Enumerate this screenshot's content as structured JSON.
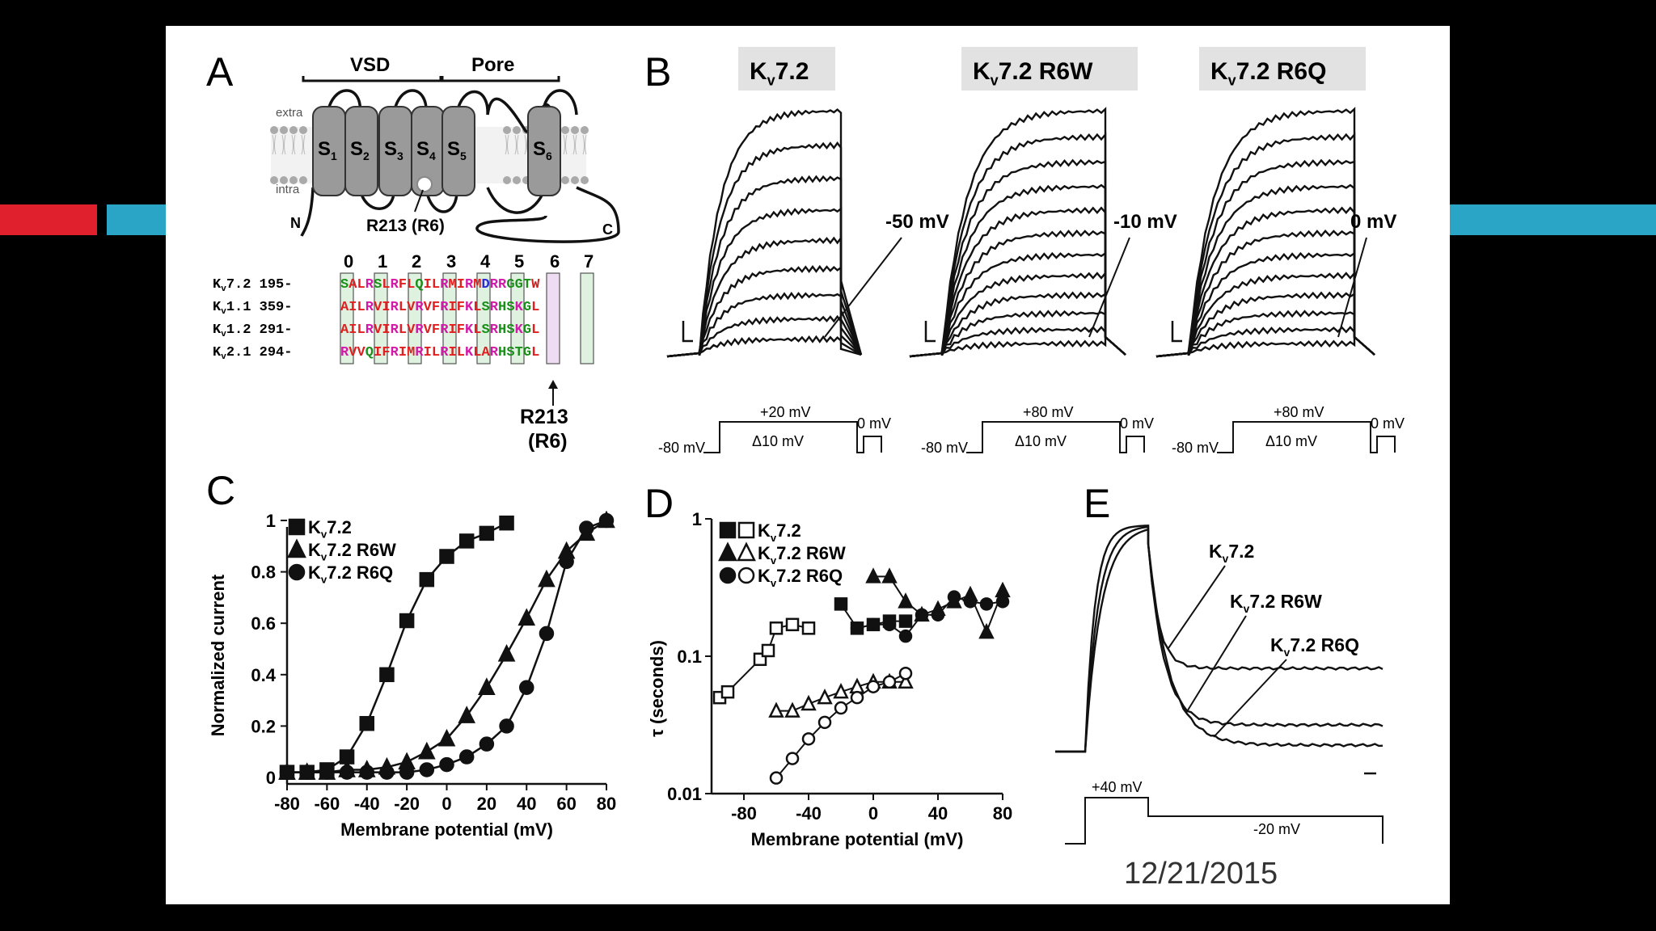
{
  "colors": {
    "red": "#e0202c",
    "cyan": "#2aa5c6",
    "slide_bg": "#ffffff",
    "ink": "#111111"
  },
  "slide": {
    "date": "12/21/2015"
  },
  "panelA": {
    "letter": "A",
    "vsd": "VSD",
    "pore": "Pore",
    "extra": "extra",
    "intra": "intra",
    "segments": [
      "S",
      "S",
      "S",
      "S",
      "S",
      "S"
    ],
    "segment_subs": [
      "1",
      "2",
      "3",
      "4",
      "5",
      "6"
    ],
    "n_term": "N",
    "c_term": "C",
    "mutation": "R213 (R6)",
    "positions": [
      "0",
      "1",
      "2",
      "3",
      "4",
      "5",
      "6",
      "7"
    ],
    "sequences": [
      {
        "name": "K",
        "sub": "v",
        "rest": "7.2",
        "start": "195-",
        "residues": "SALRSLRFLQILRMIRMDRRGGTW"
      },
      {
        "name": "K",
        "sub": "v",
        "rest": "1.1",
        "start": "359-",
        "residues": "AILRVIRLVRVFRIFKLSRHSKGL"
      },
      {
        "name": "K",
        "sub": "v",
        "rest": "1.2",
        "start": "291-",
        "residues": "AILRVIRLVRVFRIFKLSRHSKGL"
      },
      {
        "name": "K",
        "sub": "v",
        "rest": "2.1",
        "start": "294-",
        "residues": "RVVQIFRIMRILRILKLARHSTGL"
      }
    ],
    "arrow_label_1": "R213",
    "arrow_label_2": "(R6)"
  },
  "panelB": {
    "letter": "B",
    "traces": [
      {
        "title_k": "K",
        "title_sub": "v",
        "title_rest": "7.2",
        "tail": "-50 mV",
        "hold": "-80 mV",
        "step": "+20 mV",
        "delta": "Δ10 mV",
        "post": "0 mV"
      },
      {
        "title_k": "K",
        "title_sub": "v",
        "title_rest": "7.2 R6W",
        "tail": "-10 mV",
        "hold": "-80 mV",
        "step": "+80 mV",
        "delta": "Δ10 mV",
        "post": "0 mV"
      },
      {
        "title_k": "K",
        "title_sub": "v",
        "title_rest": "7.2 R6Q",
        "tail": "0 mV",
        "hold": "-80 mV",
        "step": "+80 mV",
        "delta": "Δ10 mV",
        "post": "0 mV"
      }
    ]
  },
  "panelC": {
    "letter": "C",
    "chart_data": {
      "type": "scatter",
      "xlabel": "Membrane potential (mV)",
      "ylabel": "Normalized current",
      "xlim": [
        -80,
        80
      ],
      "ylim": [
        0,
        1
      ],
      "xticks": [
        "-80",
        "-60",
        "-40",
        "-20",
        "0",
        "20",
        "40",
        "60",
        "80"
      ],
      "yticks": [
        "0",
        "0.2",
        "0.4",
        "0.6",
        "0.8",
        "1"
      ],
      "legend": [
        "K",
        "K",
        "K"
      ],
      "legend_sub": [
        "v",
        "v",
        "v"
      ],
      "legend_rest": [
        "7.2",
        "7.2 R6W",
        "7.2 R6Q"
      ],
      "series": [
        {
          "name": "Kv7.2",
          "marker": "square",
          "x": [
            -80,
            -70,
            -60,
            -50,
            -40,
            -30,
            -20,
            -10,
            0,
            10,
            20,
            30
          ],
          "y": [
            0.02,
            0.02,
            0.03,
            0.08,
            0.21,
            0.4,
            0.61,
            0.77,
            0.86,
            0.92,
            0.95,
            0.99
          ]
        },
        {
          "name": "Kv7.2 R6W",
          "marker": "triangle",
          "x": [
            -80,
            -70,
            -60,
            -50,
            -40,
            -30,
            -20,
            -10,
            0,
            10,
            20,
            30,
            40,
            50,
            60,
            70,
            80
          ],
          "y": [
            0.02,
            0.02,
            0.02,
            0.03,
            0.03,
            0.04,
            0.06,
            0.1,
            0.15,
            0.24,
            0.35,
            0.48,
            0.62,
            0.77,
            0.88,
            0.95,
            1.0
          ]
        },
        {
          "name": "Kv7.2 R6Q",
          "marker": "circle",
          "x": [
            -80,
            -70,
            -60,
            -50,
            -40,
            -30,
            -20,
            -10,
            0,
            10,
            20,
            30,
            40,
            50,
            60,
            70,
            80
          ],
          "y": [
            0.02,
            0.02,
            0.02,
            0.02,
            0.02,
            0.02,
            0.02,
            0.03,
            0.05,
            0.08,
            0.13,
            0.2,
            0.35,
            0.56,
            0.84,
            0.97,
            1.0
          ]
        }
      ]
    }
  },
  "panelD": {
    "letter": "D",
    "chart_data": {
      "type": "scatter",
      "xlabel": "Membrane potential (mV)",
      "ylabel": "τ (seconds)",
      "xlim": [
        -100,
        80
      ],
      "ylim": [
        0.01,
        1
      ],
      "yscale": "log",
      "xticks": [
        "-80",
        "-40",
        "0",
        "40",
        "80"
      ],
      "yticks": [
        "0.01",
        "0.1",
        "1"
      ],
      "legend_rest": [
        "7.2",
        "7.2 R6W",
        "7.2 R6Q"
      ],
      "series": [
        {
          "name": "Kv7.2 open",
          "marker": "square-open",
          "x": [
            -95,
            -90,
            -70,
            -65,
            -60,
            -50,
            -40
          ],
          "y": [
            0.05,
            0.055,
            0.095,
            0.11,
            0.16,
            0.17,
            0.16
          ]
        },
        {
          "name": "Kv7.2 filled",
          "marker": "square",
          "x": [
            -20,
            -10,
            0,
            10,
            20
          ],
          "y": [
            0.24,
            0.16,
            0.17,
            0.18,
            0.18
          ]
        },
        {
          "name": "Kv7.2 R6W open",
          "marker": "triangle-open",
          "x": [
            -60,
            -50,
            -40,
            -30,
            -20,
            -10,
            0,
            10,
            20
          ],
          "y": [
            0.04,
            0.04,
            0.045,
            0.05,
            0.055,
            0.06,
            0.065,
            0.065,
            0.065
          ]
        },
        {
          "name": "Kv7.2 R6W filled",
          "marker": "triangle",
          "x": [
            0,
            10,
            20,
            30,
            40,
            50,
            60,
            70,
            80
          ],
          "y": [
            0.38,
            0.38,
            0.25,
            0.2,
            0.22,
            0.25,
            0.28,
            0.15,
            0.3
          ]
        },
        {
          "name": "Kv7.2 R6Q open",
          "marker": "circle-open",
          "x": [
            -60,
            -50,
            -40,
            -30,
            -20,
            -10,
            0,
            10,
            20
          ],
          "y": [
            0.013,
            0.018,
            0.025,
            0.033,
            0.042,
            0.05,
            0.06,
            0.065,
            0.075
          ]
        },
        {
          "name": "Kv7.2 R6Q filled",
          "marker": "circle",
          "x": [
            -10,
            0,
            10,
            20,
            30,
            40,
            50,
            60,
            70,
            80
          ],
          "y": [
            0.16,
            0.17,
            0.17,
            0.14,
            0.2,
            0.2,
            0.27,
            0.25,
            0.24,
            0.25
          ]
        }
      ]
    }
  },
  "panelE": {
    "letter": "E",
    "labels": [
      {
        "k": "K",
        "sub": "v",
        "rest": "7.2"
      },
      {
        "k": "K",
        "sub": "v",
        "rest": "7.2 R6W"
      },
      {
        "k": "K",
        "sub": "v",
        "rest": "7.2 R6Q"
      }
    ],
    "step": "+40 mV",
    "post": "-20 mV"
  }
}
